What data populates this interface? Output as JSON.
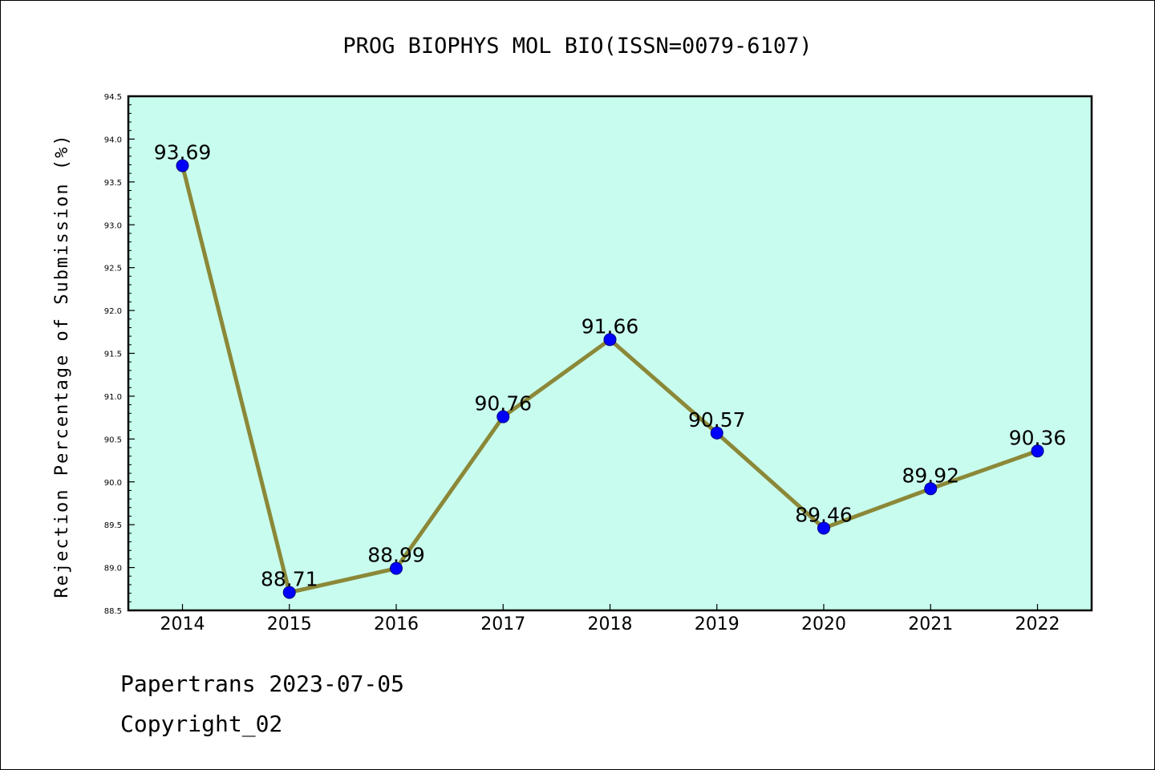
{
  "chart_data": {
    "type": "line",
    "title": "PROG BIOPHYS MOL BIO(ISSN=0079-6107)",
    "xlabel": "",
    "ylabel": "Rejection Percentage of Submission (%)",
    "categories": [
      "2014",
      "2015",
      "2016",
      "2017",
      "2018",
      "2019",
      "2020",
      "2021",
      "2022"
    ],
    "series": [
      {
        "name": "Rejection Percentage",
        "values": [
          93.69,
          88.71,
          88.99,
          90.76,
          91.66,
          90.57,
          89.46,
          89.92,
          90.36
        ]
      }
    ],
    "data_labels": [
      "93.69",
      "88.71",
      "88.99",
      "90.76",
      "91.66",
      "90.57",
      "89.46",
      "89.92",
      "90.36"
    ],
    "ylim": [
      88.5,
      94.5
    ],
    "y_ticks": [
      "88.5",
      "89.0",
      "89.5",
      "90.0",
      "90.5",
      "91.0",
      "91.5",
      "92.0",
      "92.5",
      "93.0",
      "93.5",
      "94.0",
      "94.5"
    ],
    "grid": false,
    "legend": "none",
    "colors": {
      "plot_background": "#c8fcee",
      "line": "#8b8838",
      "marker": "#0000ff",
      "marker_edge": "#000080",
      "axis": "#000000"
    }
  },
  "footer": {
    "date_line": "Papertrans 2023-07-05",
    "copyright_line": "Copyright_02"
  }
}
